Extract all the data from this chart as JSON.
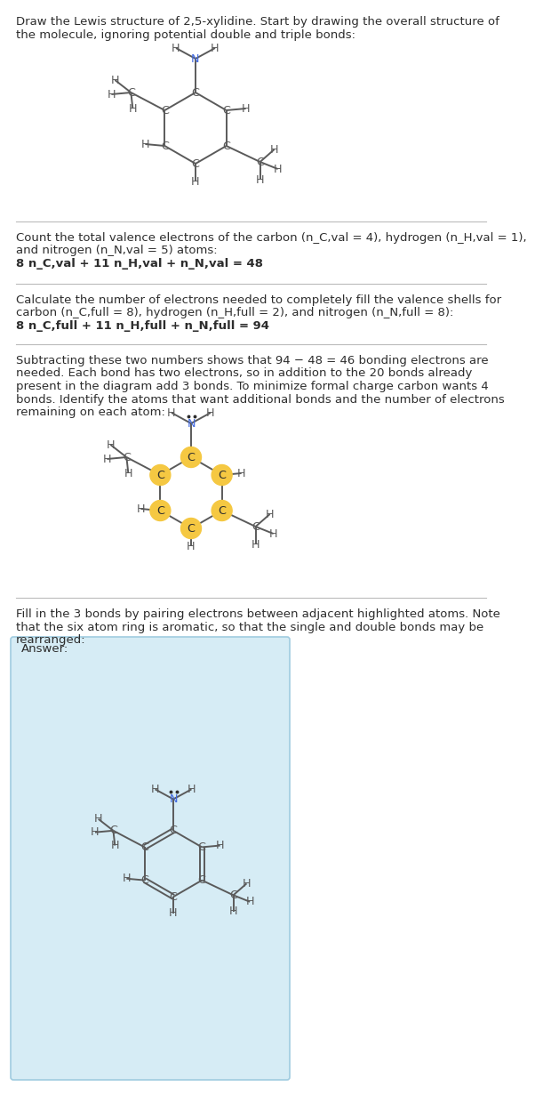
{
  "bg_color": "#ffffff",
  "text_color": "#2d2d2d",
  "N_color": "#4169e1",
  "C_color": "#5a5a5a",
  "H_color": "#5a5a5a",
  "bond_color": "#5a5a5a",
  "highlight_color": "#f5c842",
  "answer_box_color": "#d6ecf5",
  "answer_box_edge": "#a0cce0",
  "fs_text": 9.5,
  "lh": 14.5,
  "ring_r": 40,
  "section1_lines": [
    "Draw the Lewis structure of 2,5-xylidine. Start by drawing the overall structure of",
    "the molecule, ignoring potential double and triple bonds:"
  ],
  "section2_lines": [
    "Count the total valence electrons of the carbon (n_C,val = 4), hydrogen (n_H,val = 1),",
    "and nitrogen (n_N,val = 5) atoms:",
    "8 n_C,val + 11 n_H,val + n_N,val = 48"
  ],
  "section3_lines": [
    "Calculate the number of electrons needed to completely fill the valence shells for",
    "carbon (n_C,full = 8), hydrogen (n_H,full = 2), and nitrogen (n_N,full = 8):",
    "8 n_C,full + 11 n_H,full + n_N,full = 94"
  ],
  "section4_lines": [
    "Subtracting these two numbers shows that 94 − 48 = 46 bonding electrons are",
    "needed. Each bond has two electrons, so in addition to the 20 bonds already",
    "present in the diagram add 3 bonds. To minimize formal charge carbon wants 4",
    "bonds. Identify the atoms that want additional bonds and the number of electrons",
    "remaining on each atom:"
  ],
  "section5_lines": [
    "Fill in the 3 bonds by pairing electrons between adjacent highlighted atoms. Note",
    "that the six atom ring is aromatic, so that the single and double bonds may be",
    "rearranged:"
  ],
  "answer_label": "Answer:"
}
